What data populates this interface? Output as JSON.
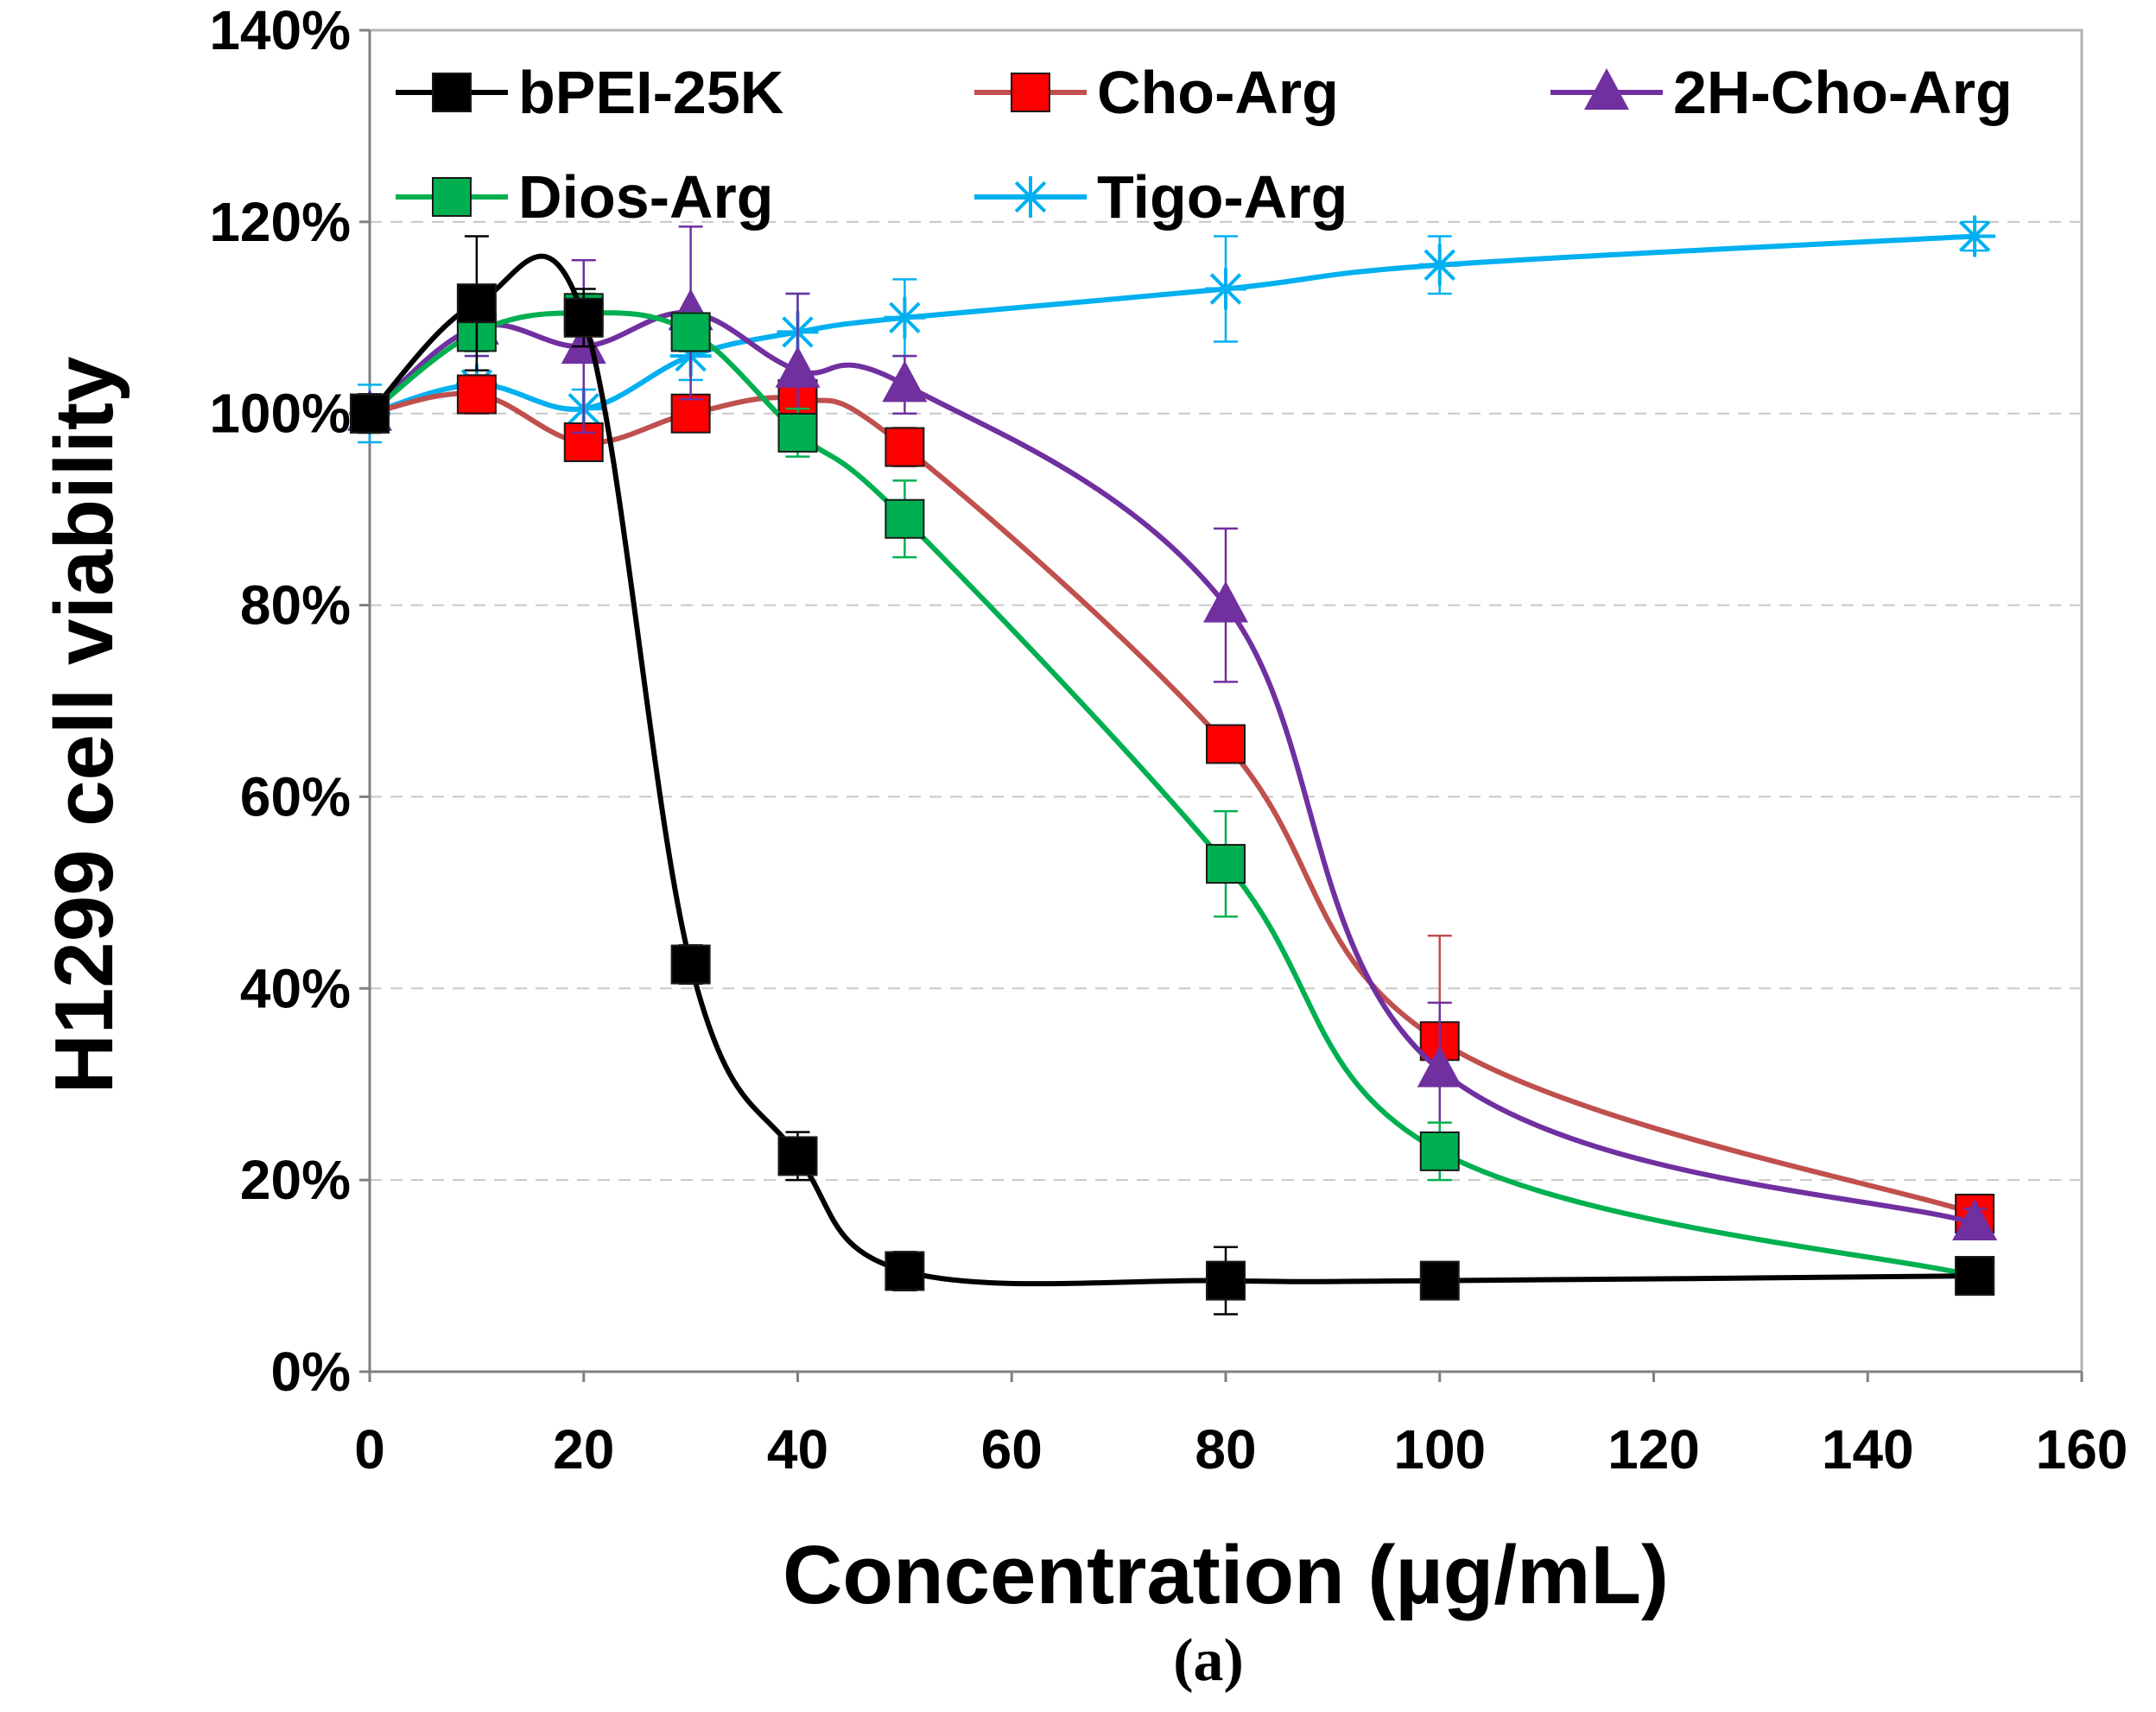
{
  "chart_data": {
    "type": "line",
    "ylabel": "H1299  cell viability",
    "xlabel": "Concentration (µg/mL)",
    "panel_label": "(a)",
    "xlim": [
      0,
      160
    ],
    "ylim": [
      0,
      140
    ],
    "x_ticks": [
      "0",
      "20",
      "40",
      "60",
      "80",
      "100",
      "120",
      "140",
      "160"
    ],
    "y_ticks": [
      "0%",
      "20%",
      "40%",
      "60%",
      "80%",
      "100%",
      "120%",
      "140%"
    ],
    "grid": "horizontal dashed",
    "legend_position": "top",
    "series": [
      {
        "name": "bPEI-25K",
        "color": "#000000",
        "marker": "square",
        "x": [
          0,
          10,
          20,
          30,
          40,
          50,
          80,
          100,
          150
        ],
        "y": [
          100,
          111.5,
          110,
          42.5,
          22.5,
          10.5,
          9.5,
          9.5,
          10
        ],
        "err": [
          2,
          7,
          3,
          2,
          2.5,
          2,
          3.5,
          1.5,
          1
        ]
      },
      {
        "name": "Cho-Arg",
        "color": "#ff0000",
        "line_color": "#c0504d",
        "marker": "square",
        "x": [
          0,
          10,
          20,
          30,
          40,
          50,
          80,
          100,
          150
        ],
        "y": [
          100,
          102,
          97,
          100,
          101.5,
          96.5,
          65.5,
          34.5,
          16.5
        ],
        "err": [
          2,
          2,
          1.5,
          1.5,
          2,
          2,
          1.5,
          11,
          1.5
        ]
      },
      {
        "name": "2H-Cho-Arg",
        "color": "#7030a0",
        "marker": "triangle",
        "x": [
          0,
          10,
          20,
          30,
          40,
          50,
          80,
          100,
          150
        ],
        "y": [
          100,
          109,
          107,
          110.5,
          104.5,
          103,
          80,
          31.5,
          15.5
        ],
        "err": [
          2,
          3,
          9,
          9,
          8,
          3,
          8,
          7,
          1.5
        ]
      },
      {
        "name": "Dios-Arg",
        "color": "#00b050",
        "marker": "square",
        "x": [
          0,
          10,
          20,
          30,
          40,
          50,
          80,
          100,
          150
        ],
        "y": [
          100,
          108.5,
          110.5,
          108.5,
          98,
          89,
          53,
          23,
          10
        ],
        "err": [
          2,
          2,
          2,
          2,
          2.5,
          4,
          5.5,
          3,
          1
        ]
      },
      {
        "name": "Tigo-Arg",
        "color": "#00b0f0",
        "marker": "asterisk",
        "x": [
          0,
          10,
          20,
          30,
          40,
          50,
          80,
          100,
          150
        ],
        "y": [
          100,
          103,
          100.5,
          106,
          108.5,
          110,
          113,
          115.5,
          118.5
        ],
        "err": [
          3,
          3,
          2,
          2.5,
          4,
          4,
          5.5,
          3,
          1.5
        ]
      }
    ]
  }
}
